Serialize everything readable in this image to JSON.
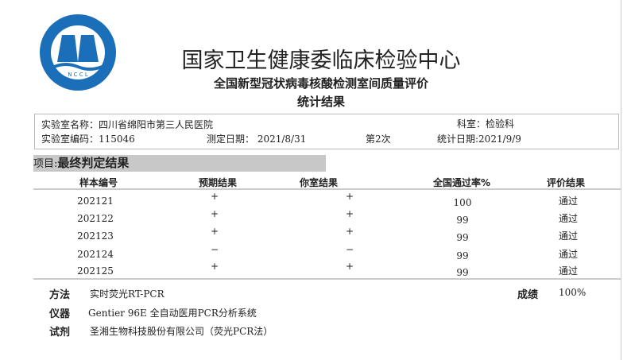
{
  "header": {
    "title": "国家卫生健康委临床检验中心",
    "subtitle": "全国新型冠状病毒核酸检测室间质量评价",
    "subtitle2": "统计结果",
    "logo_text": "国家卫生健康委临床检验中心 NCCL National Center for Clinical Laboratories",
    "logo_color": "#1a6fb8"
  },
  "info": {
    "lab_name": "实验室名称：四川省绵阳市第三人民医院",
    "department": "科室：检验科",
    "lab_code": "实验室编码：115046",
    "test_date": "测定日期：  2021/8/31",
    "round": "第2次",
    "stat_date": "统计日期:2021/9/9"
  },
  "project": {
    "label": "项目:",
    "name": "最终判定结果"
  },
  "table": {
    "headers": [
      "样本编号",
      "预期结果",
      "你室结果",
      "全国通过率%",
      "评价结果"
    ],
    "rows": [
      [
        "202121",
        "+",
        "+",
        "100",
        "通过"
      ],
      [
        "202122",
        "+",
        "+",
        "99",
        "通过"
      ],
      [
        "202123",
        "+",
        "+",
        "99",
        "通过"
      ],
      [
        "202124",
        "−",
        "−",
        "99",
        "通过"
      ],
      [
        "202125",
        "+",
        "+",
        "99",
        "通过"
      ]
    ]
  },
  "footer": {
    "method_label": "方法",
    "method": "实时荧光RT-PCR",
    "score_label": "成绩",
    "score": "100%",
    "instrument_label": "仪器",
    "instrument": "Gentier 96E 全自动医用PCR分析系统",
    "reagent_label": "试剂",
    "reagent": "圣湘生物科技股份有限公司（荧光PCR法）"
  }
}
